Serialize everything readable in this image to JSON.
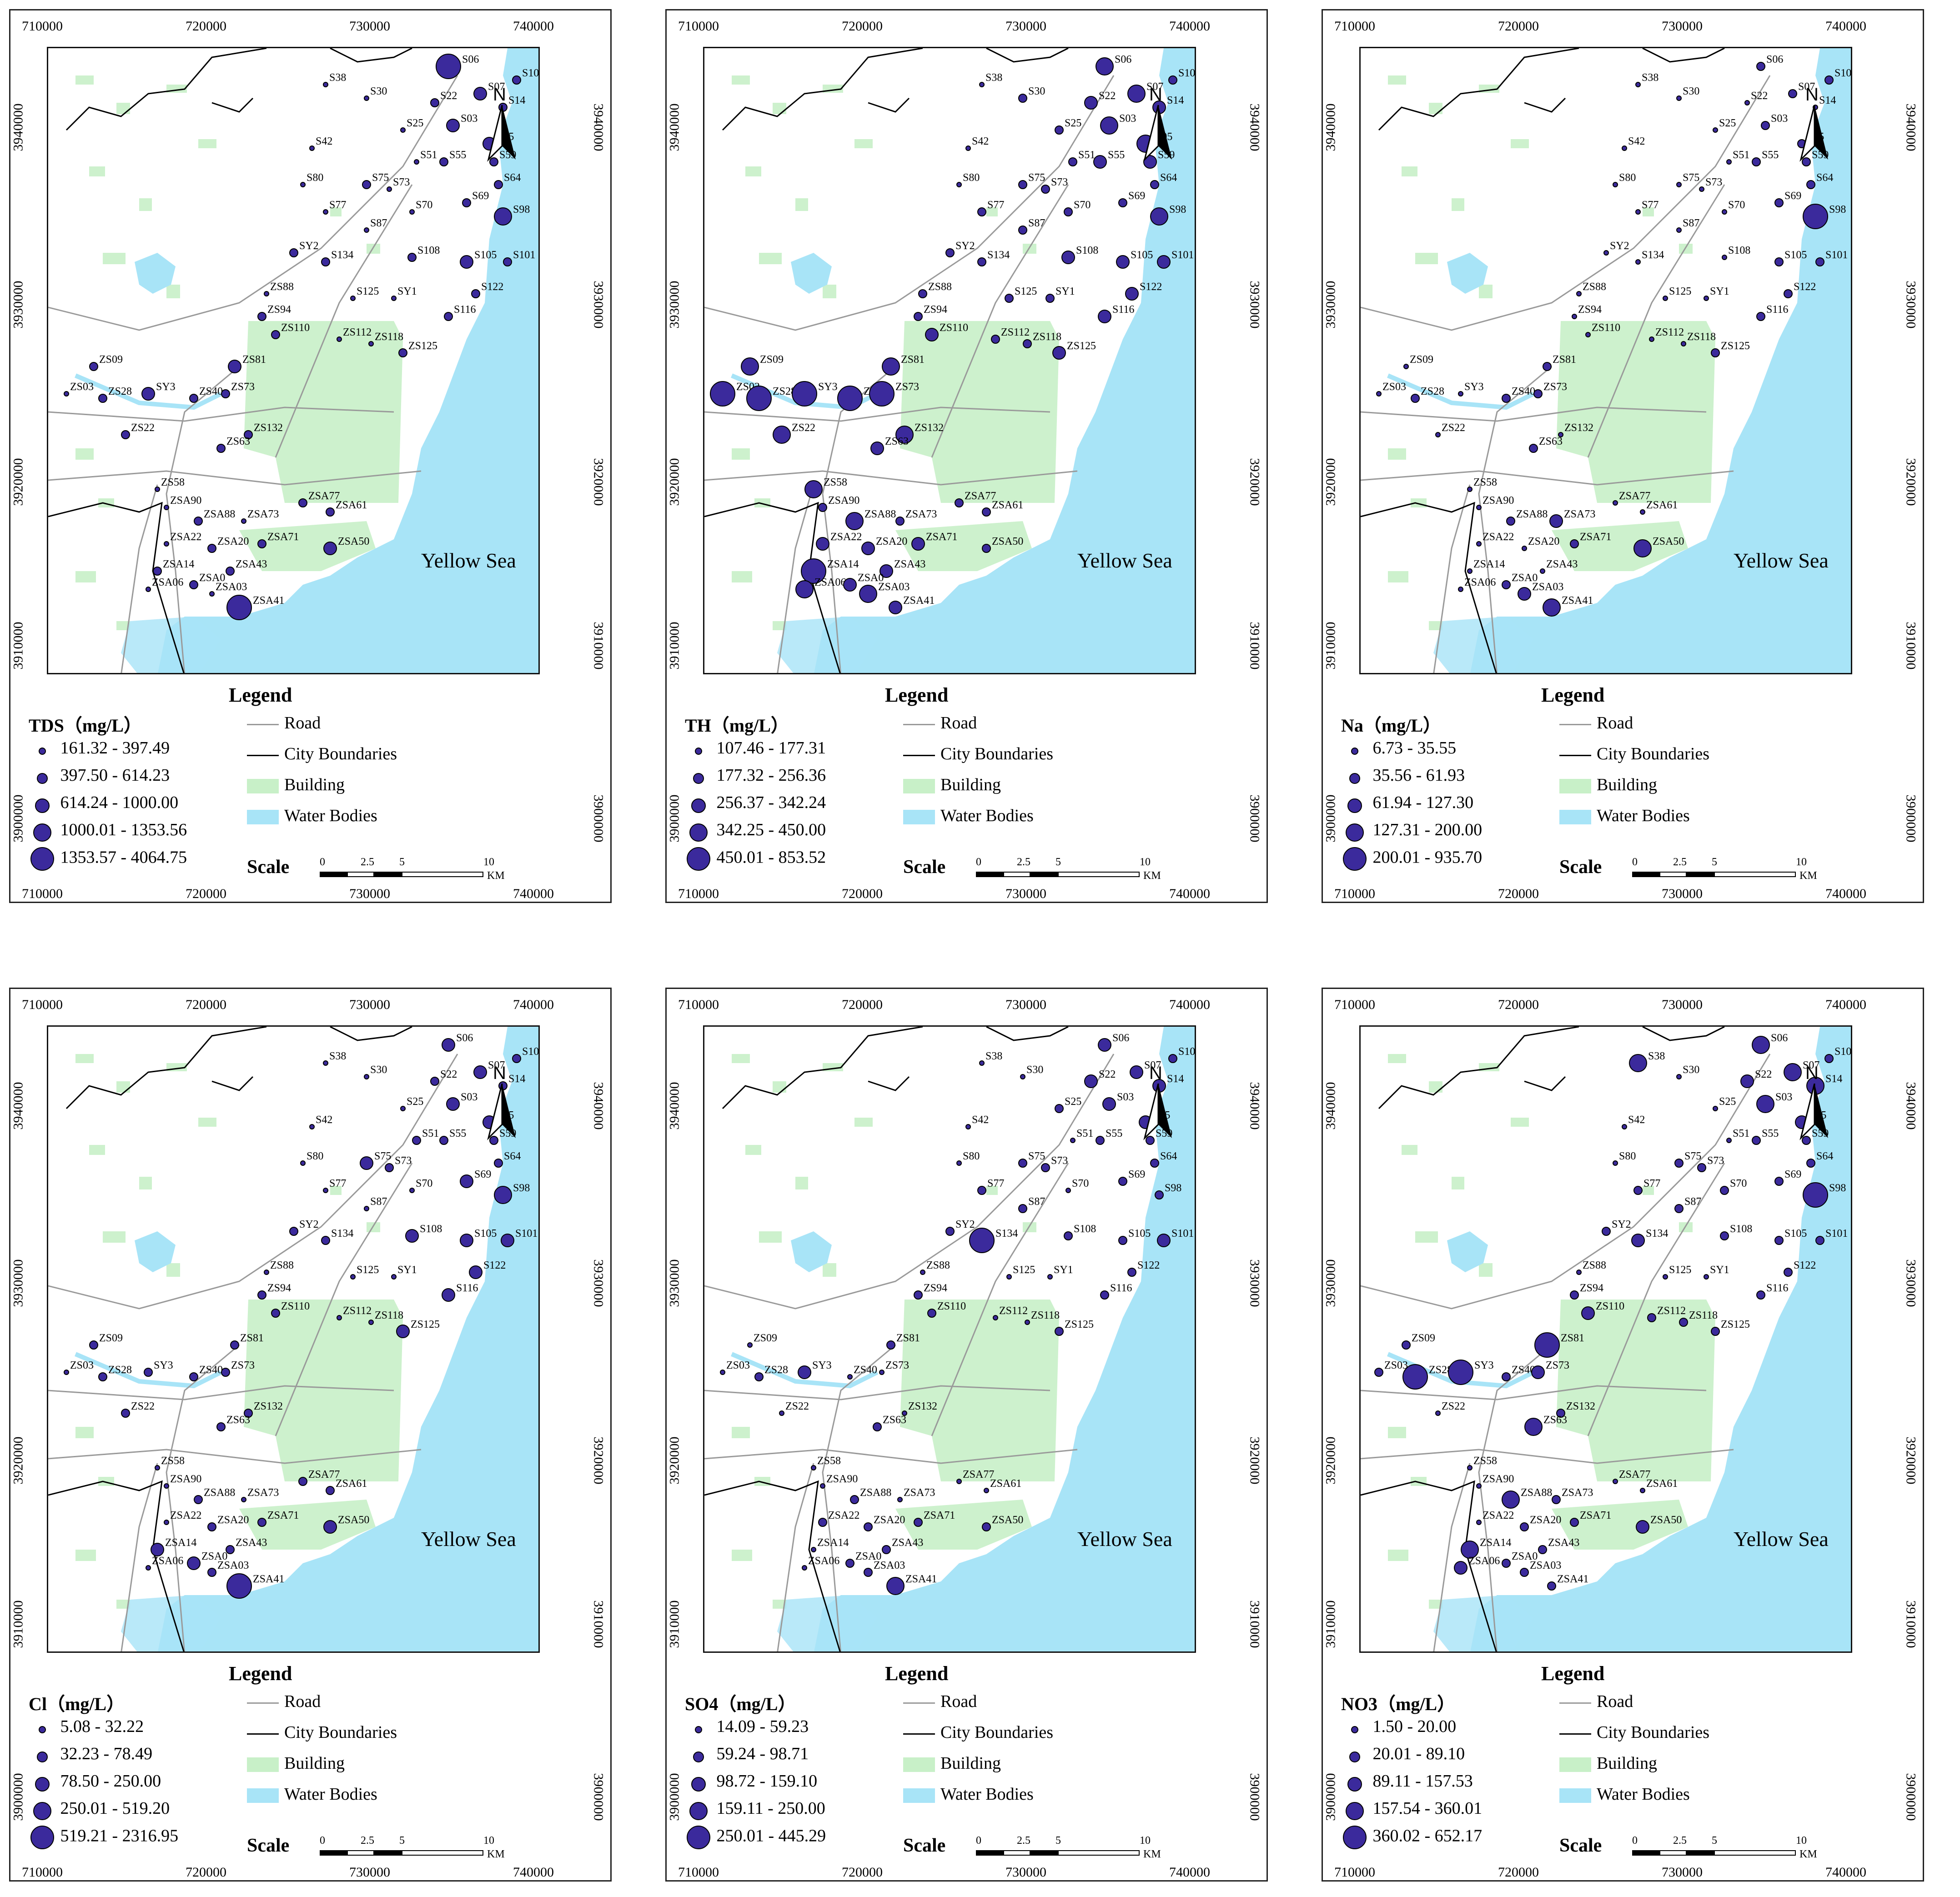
{
  "x_ticks": [
    "710000",
    "720000",
    "730000",
    "740000"
  ],
  "y_ticks": [
    "3940000",
    "3930000",
    "3920000",
    "3910000",
    "3900000"
  ],
  "sea_label": "Yellow Sea",
  "north_label": "N",
  "legend_title": "Legend",
  "scale": {
    "title": "Scale",
    "labels": [
      "0",
      "2.5",
      "5",
      "10"
    ],
    "unit": "KM"
  },
  "legend_items": [
    {
      "label": "Road",
      "kind": "line",
      "color": "#9a9a9a"
    },
    {
      "label": "City Boundaries",
      "kind": "line",
      "color": "#000000"
    },
    {
      "label": "Building",
      "kind": "box",
      "color": "#c8f0c8"
    },
    {
      "label": "Water Bodies",
      "kind": "box",
      "color": "#a8e4f7"
    }
  ],
  "colors": {
    "dot_fill": "#3b2a9c",
    "water": "#a8e4f7",
    "building": "#c8f0c8",
    "road": "#9a9a9a"
  },
  "panels": [
    {
      "variable": "TDS（mg/L）",
      "classes": [
        "161.32 - 397.49",
        "397.50 - 614.23",
        "614.24 - 1000.00",
        "1000.01 - 1353.56",
        "1353.57 - 4064.75"
      ]
    },
    {
      "variable": "TH（mg/L）",
      "classes": [
        "107.46 - 177.31",
        "177.32 - 256.36",
        "256.37 - 342.24",
        "342.25 - 450.00",
        "450.01 - 853.52"
      ]
    },
    {
      "variable": "Na（mg/L）",
      "classes": [
        "6.73 - 35.55",
        "35.56 - 61.93",
        "61.94 - 127.30",
        "127.31 - 200.00",
        "200.01 - 935.70"
      ]
    },
    {
      "variable": "Cl（mg/L）",
      "classes": [
        "5.08 - 32.22",
        "32.23 - 78.49",
        "78.50 - 250.00",
        "250.01 - 519.20",
        "519.21 - 2316.95"
      ]
    },
    {
      "variable": "SO4（mg/L）",
      "classes": [
        "14.09 - 59.23",
        "59.24 - 98.71",
        "98.72 - 159.10",
        "159.11 - 250.00",
        "250.01 - 445.29"
      ]
    },
    {
      "variable": "NO3（mg/L）",
      "classes": [
        "1.50 - 20.00",
        "20.01 - 89.10",
        "89.11 - 157.53",
        "157.54 - 360.01",
        "360.02 - 652.17"
      ]
    }
  ],
  "sites": [
    "S06",
    "S10",
    "S38",
    "S30",
    "S22",
    "S07",
    "S14",
    "S03",
    "S25",
    "S05",
    "S42",
    "S51",
    "S55",
    "S59",
    "S80",
    "S75",
    "S73",
    "S64",
    "S69",
    "S77",
    "S70",
    "S98",
    "S87",
    "SY2",
    "S134",
    "S108",
    "S105",
    "S101",
    "ZS88",
    "S125",
    "SY1",
    "S122",
    "ZS94",
    "S116",
    "ZS110",
    "ZS112",
    "ZS118",
    "ZS125",
    "ZS81",
    "ZS09",
    "ZS03",
    "ZS28",
    "SY3",
    "ZS40",
    "ZS73",
    "ZS22",
    "ZS132",
    "ZS63",
    "ZS58",
    "ZSA90",
    "ZSA77",
    "ZSA88",
    "ZSA73",
    "ZSA61",
    "ZSA22",
    "ZSA20",
    "ZSA71",
    "ZSA50",
    "ZSA14",
    "ZSA43",
    "ZSA06",
    "ZSA03",
    "ZSA41",
    "ZSA0"
  ]
}
